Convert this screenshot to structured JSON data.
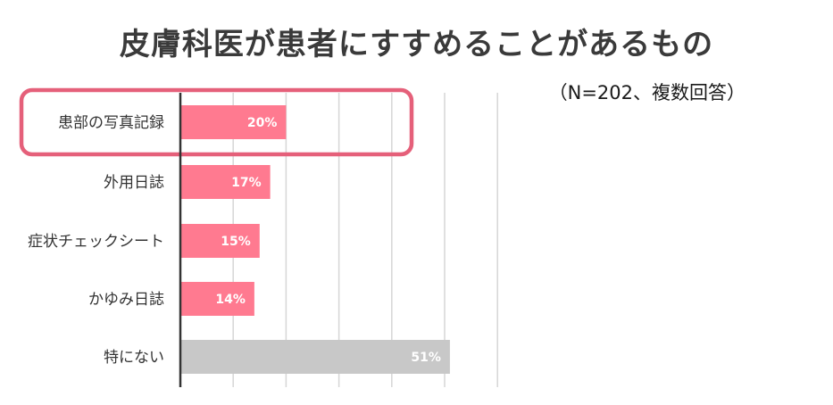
{
  "chart_data": {
    "type": "bar",
    "orientation": "horizontal",
    "title": "皮膚科医が患者にすすめることがあるもの",
    "subtitle": "（N=202、複数回答）",
    "categories": [
      "患部の写真記録",
      "外用日誌",
      "症状チェックシート",
      "かゆみ日誌",
      "特にない"
    ],
    "values": [
      20,
      17,
      15,
      14,
      51
    ],
    "value_labels": [
      "20%",
      "17%",
      "15%",
      "14%",
      "51%"
    ],
    "xlim": [
      0,
      60
    ],
    "grid": true,
    "highlighted_category": "患部の写真記録",
    "colors": {
      "bar": "#ff7a90",
      "bar_none": "#c8c8c8",
      "highlight_outline": "#e5607a",
      "grid": "#d6d6d6",
      "axis": "#333333"
    }
  }
}
